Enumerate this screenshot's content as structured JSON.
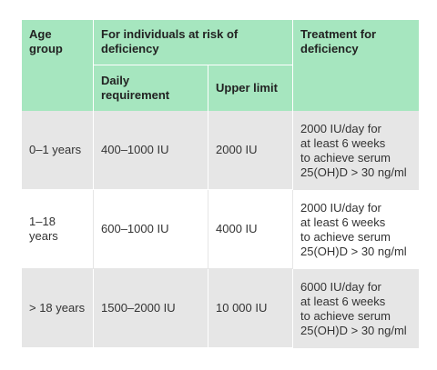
{
  "header": {
    "age_group": "Age group",
    "at_risk": "For individuals at risk of deficiency",
    "daily_requirement": "Daily requirement",
    "upper_limit": "Upper limit",
    "treatment": "Treatment for deficiency"
  },
  "rows": [
    {
      "age": "0–1 years",
      "daily": "400–1000 IU",
      "upper": "2000 IU",
      "treatment": "2000 IU/day for\nat least 6 weeks\nto achieve serum\n25(OH)D > 30 ng/ml"
    },
    {
      "age": "1–18 years",
      "daily": "600–1000 IU",
      "upper": "4000 IU",
      "treatment": "2000 IU/day for\nat least 6 weeks\nto achieve serum\n25(OH)D > 30 ng/ml"
    },
    {
      "age": "> 18 years",
      "daily": "1500–2000 IU",
      "upper": "10 000 IU",
      "treatment": "6000 IU/day for\nat least 6 weeks\nto achieve serum\n25(OH)D > 30 ng/ml"
    }
  ],
  "colors": {
    "header_bg": "#a6e6bf",
    "row_alt_bg": "#e6e6e6"
  }
}
